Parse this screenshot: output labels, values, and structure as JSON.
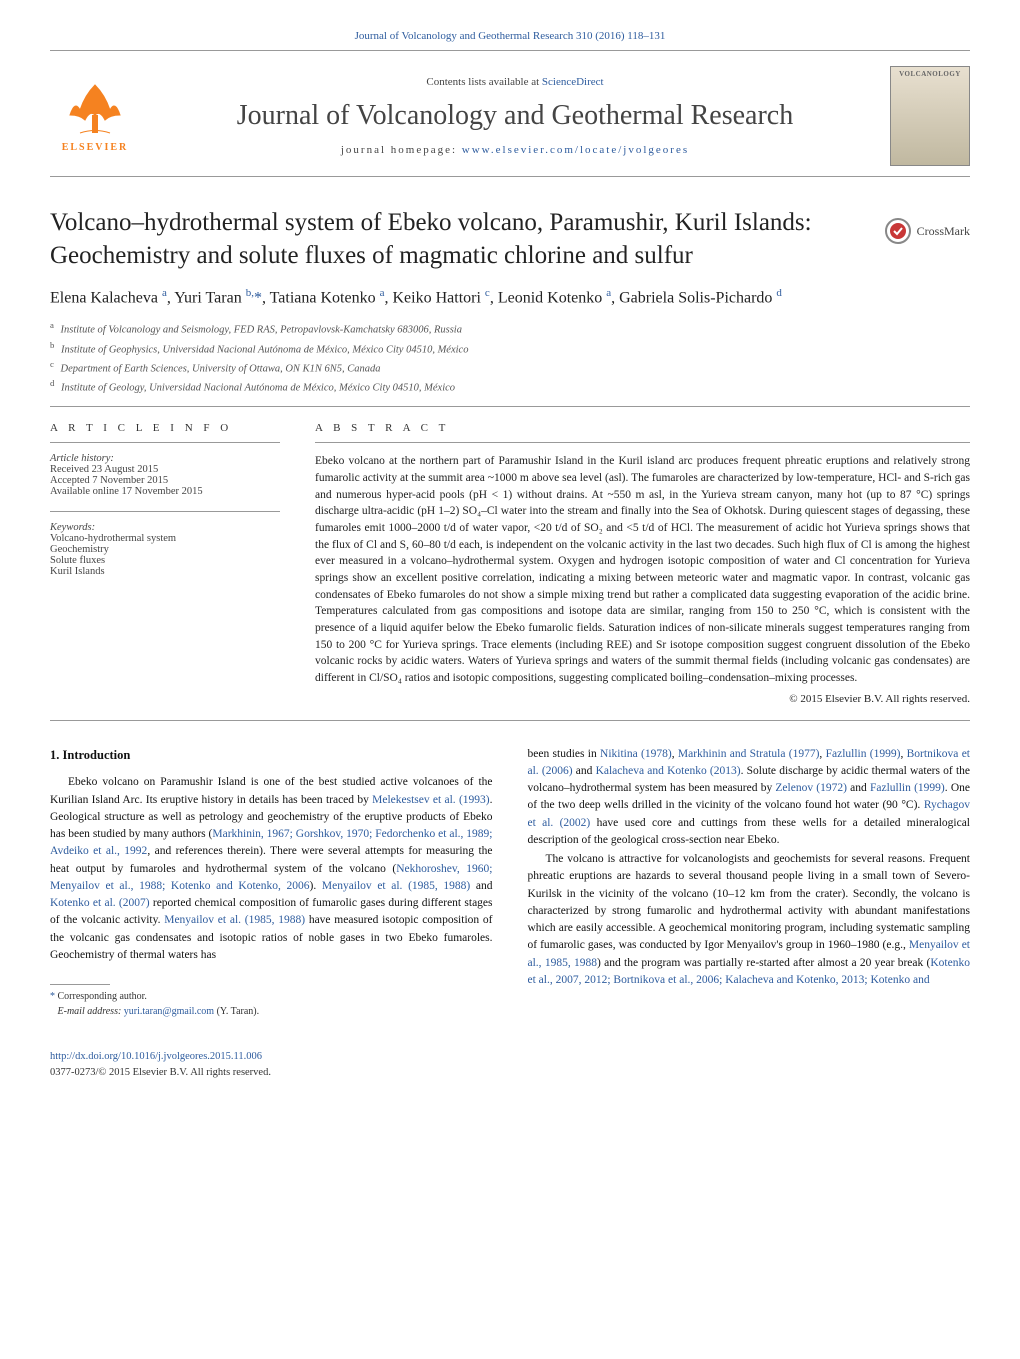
{
  "header": {
    "citation": "Journal of Volcanology and Geothermal Research 310 (2016) 118–131",
    "contents_prefix": "Contents lists available at ",
    "contents_link": "ScienceDirect",
    "journal_name": "Journal of Volcanology and Geothermal Research",
    "homepage_prefix": "journal homepage: ",
    "homepage_link": "www.elsevier.com/locate/jvolgeores",
    "elsevier": "ELSEVIER",
    "cover_label": "VOLCANOLOGY",
    "crossmark": "CrossMark"
  },
  "article": {
    "title": "Volcano–hydrothermal system of Ebeko volcano, Paramushir, Kuril Islands: Geochemistry and solute fluxes of magmatic chlorine and sulfur",
    "authors_html": "Elena Kalacheva <sup>a</sup>, Yuri Taran <sup>b,</sup><span class='author-star'>*</span>, Tatiana Kotenko <sup>a</sup>, Keiko Hattori <sup>c</sup>, Leonid Kotenko <sup>a</sup>, Gabriela Solis-Pichardo <sup>d</sup>",
    "affiliations": [
      {
        "sup": "a",
        "text": "Institute of Volcanology and Seismology, FED RAS, Petropavlovsk-Kamchatsky 683006, Russia"
      },
      {
        "sup": "b",
        "text": "Institute of Geophysics, Universidad Nacional Autónoma de México, México City 04510, México"
      },
      {
        "sup": "c",
        "text": "Department of Earth Sciences, University of Ottawa, ON K1N 6N5, Canada"
      },
      {
        "sup": "d",
        "text": "Institute of Geology, Universidad Nacional Autónoma de México, México City 04510, México"
      }
    ]
  },
  "meta": {
    "info_head": "A R T I C L E   I N F O",
    "abstract_head": "A B S T R A C T",
    "history_label": "Article history:",
    "history": [
      "Received 23 August 2015",
      "Accepted 7 November 2015",
      "Available online 17 November 2015"
    ],
    "keywords_label": "Keywords:",
    "keywords": [
      "Volcano-hydrothermal system",
      "Geochemistry",
      "Solute fluxes",
      "Kuril Islands"
    ]
  },
  "abstract": {
    "text": "Ebeko volcano at the northern part of Paramushir Island in the Kuril island arc produces frequent phreatic eruptions and relatively strong fumarolic activity at the summit area ~1000 m above sea level (asl). The fumaroles are characterized by low-temperature, HCl- and S-rich gas and numerous hyper-acid pools (pH < 1) without drains. At ~550 m asl, in the Yurieva stream canyon, many hot (up to 87 °C) springs discharge ultra-acidic (pH 1–2) SO₄–Cl water into the stream and finally into the Sea of Okhotsk. During quiescent stages of degassing, these fumaroles emit 1000–2000 t/d of water vapor, <20 t/d of SO₂ and <5 t/d of HCl. The measurement of acidic hot Yurieva springs shows that the flux of Cl and S, 60–80 t/d each, is independent on the volcanic activity in the last two decades. Such high flux of Cl is among the highest ever measured in a volcano–hydrothermal system. Oxygen and hydrogen isotopic composition of water and Cl concentration for Yurieva springs show an excellent positive correlation, indicating a mixing between meteoric water and magmatic vapor. In contrast, volcanic gas condensates of Ebeko fumaroles do not show a simple mixing trend but rather a complicated data suggesting evaporation of the acidic brine. Temperatures calculated from gas compositions and isotope data are similar, ranging from 150 to 250 °C, which is consistent with the presence of a liquid aquifer below the Ebeko fumarolic fields. Saturation indices of non-silicate minerals suggest temperatures ranging from 150 to 200 °C for Yurieva springs. Trace elements (including REE) and Sr isotope composition suggest congruent dissolution of the Ebeko volcanic rocks by acidic waters. Waters of Yurieva springs and waters of the summit thermal fields (including volcanic gas condensates) are different in Cl/SO₄ ratios and isotopic compositions, suggesting complicated boiling–condensation–mixing processes.",
    "copyright": "© 2015 Elsevier B.V. All rights reserved."
  },
  "body": {
    "intro_heading": "1. Introduction",
    "col1_para1": "Ebeko volcano on Paramushir Island is one of the best studied active volcanoes of the Kurilian Island Arc. Its eruptive history in details has been traced by <span class='ref-link'>Melekestsev et al. (1993)</span>. Geological structure as well as petrology and geochemistry of the eruptive products of Ebeko has been studied by many authors (<span class='ref-link'>Markhinin, 1967; Gorshkov, 1970; Fedorchenko et al., 1989; Avdeiko et al., 1992</span>, and references therein). There were several attempts for measuring the heat output by fumaroles and hydrothermal system of the volcano (<span class='ref-link'>Nekhoroshev, 1960; Menyailov et al., 1988; Kotenko and Kotenko, 2006</span>). <span class='ref-link'>Menyailov et al. (1985, 1988)</span> and <span class='ref-link'>Kotenko et al. (2007)</span> reported chemical composition of fumarolic gases during different stages of the volcanic activity. <span class='ref-link'>Menyailov et al. (1985, 1988)</span> have measured isotopic composition of the volcanic gas condensates and isotopic ratios of noble gases in two Ebeko fumaroles. Geochemistry of thermal waters has",
    "col2_para1": "been studies in <span class='ref-link'>Nikitina (1978)</span>, <span class='ref-link'>Markhinin and Stratula (1977)</span>, <span class='ref-link'>Fazlullin (1999)</span>, <span class='ref-link'>Bortnikova et al. (2006)</span> and <span class='ref-link'>Kalacheva and Kotenko (2013)</span>. Solute discharge by acidic thermal waters of the volcano–hydrothermal system has been measured by <span class='ref-link'>Zelenov (1972)</span> and <span class='ref-link'>Fazlullin (1999)</span>. One of the two deep wells drilled in the vicinity of the volcano found hot water (90 °C). <span class='ref-link'>Rychagov et al. (2002)</span> have used core and cuttings from these wells for a detailed mineralogical description of the geological cross-section near Ebeko.",
    "col2_para2": "The volcano is attractive for volcanologists and geochemists for several reasons. Frequent phreatic eruptions are hazards to several thousand people living in a small town of Severo-Kurilsk in the vicinity of the volcano (10–12 km from the crater). Secondly, the volcano is characterized by strong fumarolic and hydrothermal activity with abundant manifestations which are easily accessible. A geochemical monitoring program, including systematic sampling of fumarolic gases, was conducted by Igor Menyailov's group in 1960–1980 (e.g., <span class='ref-link'>Menyailov et al., 1985, 1988</span>) and the program was partially re-started after almost a 20 year break (<span class='ref-link'>Kotenko et al., 2007, 2012; Bortnikova et al., 2006; Kalacheva and Kotenko, 2013; Kotenko and</span>"
  },
  "footnote": {
    "corr_label": "Corresponding author.",
    "email_label": "E-mail address:",
    "email": "yuri.taran@gmail.com",
    "email_name": "(Y. Taran)."
  },
  "footer": {
    "doi": "http://dx.doi.org/10.1016/j.jvolgeores.2015.11.006",
    "copyright": "0377-0273/© 2015 Elsevier B.V. All rights reserved."
  },
  "colors": {
    "link": "#2e5c9e",
    "elsevier_orange": "#f58220",
    "text": "#000000",
    "muted": "#444444"
  }
}
